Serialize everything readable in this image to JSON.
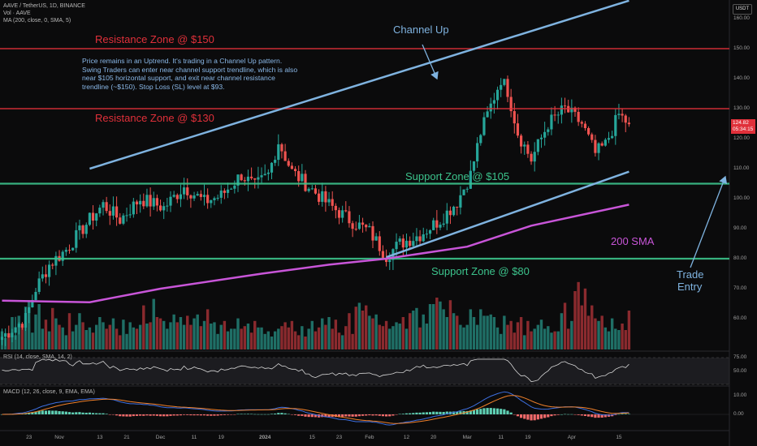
{
  "header": {
    "symbol_line": "AAVE / TetherUS, 1D, BINANCE",
    "vol_line": "Vol · AAVE",
    "ma_line": "MA (200, close, 0, SMA, 5)",
    "rsi_line": "RSI (14, close, SMA, 14, 2)",
    "macd_line": "MACD (12, 26, close, 9, EMA, EMA)",
    "currency": "USDT"
  },
  "annotations": {
    "resistance_150": "Resistance Zone @ $150",
    "resistance_130": "Resistance Zone @ $130",
    "support_105": "Support Zone @ $105",
    "support_80": "Support Zone @ $80",
    "channel_up": "Channel Up",
    "sma_label": "200 SMA",
    "trade_entry_1": "Trade",
    "trade_entry_2": "Entry",
    "note": "Price remains in an Uptrend. It's trading in a Channel Up pattern. Swing Traders can enter near channel support trendline, which is also near $105 horizontal support, and exit near channel resistance trendline (~$150). Stop Loss (SL) level at $93."
  },
  "price_tag": {
    "price": "124.82",
    "countdown": "05:34:15"
  },
  "colors": {
    "up": "#26a69a",
    "down": "#ef5350",
    "resistance": "#e0303a",
    "support": "#3cc38c",
    "channel": "#7fb3e0",
    "sma": "#c855d8",
    "background": "#0b0b0c"
  },
  "chart_data": [
    {
      "type": "candlestick",
      "title": "AAVE / TetherUS, 1D, BINANCE",
      "xlabel": "",
      "ylabel": "",
      "ylim": [
        50,
        165
      ],
      "yticks": [
        "160.00",
        "150.00",
        "140.00",
        "130.00",
        "120.00",
        "110.00",
        "100.00",
        "90.00",
        "80.00",
        "70.00",
        "60.00"
      ],
      "xticks": [
        "23",
        "Nov",
        "13",
        "21",
        "Dec",
        "11",
        "19",
        "2024",
        "15",
        "23",
        "Feb",
        "12",
        "20",
        "Mar",
        "11",
        "19",
        "Apr",
        "15"
      ],
      "horizontal_lines": [
        {
          "name": "Resistance Zone @ $150",
          "value": 150
        },
        {
          "name": "Resistance Zone @ $130",
          "value": 130
        },
        {
          "name": "Support Zone @ $105",
          "value": 105
        },
        {
          "name": "Support Zone @ $80",
          "value": 80
        }
      ],
      "channel_up": {
        "upper": [
          [
            "Nov 10",
            110
          ],
          [
            "Apr 18",
            166
          ]
        ],
        "lower": [
          [
            "Feb 6",
            80.5
          ],
          [
            "Apr 18",
            109
          ]
        ]
      },
      "sma_200": [
        [
          "Oct 15",
          66
        ],
        [
          "Nov 10",
          65.5
        ],
        [
          "Dec 1",
          70
        ],
        [
          "Dec 31",
          75
        ],
        [
          "Jan 20",
          78
        ],
        [
          "Feb 6",
          80
        ],
        [
          "Mar 1",
          84
        ],
        [
          "Mar 20",
          91
        ],
        [
          "Apr 18",
          98
        ]
      ],
      "price_path": [
        [
          "Oct 15",
          54
        ],
        [
          "Oct 22",
          60
        ],
        [
          "Oct 25",
          70
        ],
        [
          "Oct 29",
          78
        ],
        [
          "Nov 3",
          83
        ],
        [
          "Nov 10",
          93
        ],
        [
          "Nov 14",
          98
        ],
        [
          "Nov 19",
          93
        ],
        [
          "Nov 25",
          100
        ],
        [
          "Dec 2",
          97
        ],
        [
          "Dec 8",
          104
        ],
        [
          "Dec 14",
          99
        ],
        [
          "Dec 19",
          101
        ],
        [
          "Dec 25",
          108
        ],
        [
          "Dec 29",
          104
        ],
        [
          "Jan 2",
          108
        ],
        [
          "Jan 5",
          119
        ],
        [
          "Jan 9",
          109
        ],
        [
          "Jan 14",
          104
        ],
        [
          "Jan 20",
          98
        ],
        [
          "Jan 26",
          93
        ],
        [
          "Feb 1",
          89
        ],
        [
          "Feb 6",
          81
        ],
        [
          "Feb 10",
          85
        ],
        [
          "Feb 16",
          88
        ],
        [
          "Feb 22",
          93
        ],
        [
          "Feb 27",
          99
        ],
        [
          "Mar 2",
          108
        ],
        [
          "Mar 5",
          122
        ],
        [
          "Mar 8",
          131
        ],
        [
          "Mar 11",
          140
        ],
        [
          "Mar 13",
          136
        ],
        [
          "Mar 16",
          122
        ],
        [
          "Mar 20",
          113
        ],
        [
          "Mar 25",
          125
        ],
        [
          "Mar 30",
          130
        ],
        [
          "Apr 4",
          125
        ],
        [
          "Apr 8",
          115
        ],
        [
          "Apr 11",
          118
        ],
        [
          "Apr 15",
          128
        ],
        [
          "Apr 18",
          124.82
        ]
      ]
    },
    {
      "type": "bar",
      "title": "Vol · AAVE",
      "xlabel": "",
      "ylabel": "",
      "values": [
        14,
        9,
        11,
        25,
        11,
        26,
        18,
        33,
        38,
        13,
        27,
        35,
        16,
        23,
        14,
        32,
        24,
        19,
        17,
        11,
        28,
        14,
        19,
        28,
        21,
        15,
        17,
        13,
        19,
        25,
        21,
        16,
        19,
        24,
        16,
        11,
        23,
        12,
        21,
        17,
        16,
        19,
        34,
        20,
        21,
        39,
        25,
        24,
        22,
        16,
        21,
        27,
        21,
        25,
        19,
        26,
        19,
        24,
        27,
        18,
        22,
        31,
        20,
        21,
        12,
        19,
        22,
        14,
        16,
        16,
        24,
        16,
        18,
        20,
        13,
        22,
        17,
        17,
        12,
        14,
        10,
        14,
        16,
        18,
        21,
        17,
        22,
        14,
        11,
        18,
        10,
        16,
        22,
        14,
        17,
        24,
        19,
        25,
        16,
        23,
        13,
        11,
        18,
        28,
        12,
        33,
        36,
        30,
        34,
        26,
        24,
        27,
        19,
        18,
        22,
        16,
        18,
        21,
        20,
        25,
        16,
        28,
        30,
        32,
        17,
        27,
        20,
        35,
        35,
        40,
        37,
        31,
        25,
        38,
        28,
        26,
        19,
        17,
        19,
        31,
        25,
        19,
        31,
        26,
        26,
        27,
        25,
        17,
        12,
        26,
        19,
        22,
        13,
        21,
        25,
        11,
        22,
        14,
        16,
        19,
        23,
        16,
        18,
        13,
        14,
        14,
        28,
        36,
        16,
        22,
        45,
        52,
        34,
        47,
        26,
        34,
        24,
        22,
        26,
        17,
        14,
        24,
        16,
        15,
        20,
        15,
        30,
        24,
        19,
        19,
        14,
        13,
        19,
        12,
        20,
        15,
        11,
        13,
        16,
        23,
        15,
        12,
        17,
        23,
        10,
        21,
        18,
        11,
        23,
        13,
        18,
        19,
        14,
        18,
        8
      ]
    },
    {
      "type": "line",
      "title": "RSI (14, close, SMA, 14, 2)",
      "xlabel": "",
      "ylabel": "",
      "ylim": [
        25,
        75
      ],
      "yticks": [
        "75.00",
        "50.00"
      ],
      "bands": [
        75,
        25
      ]
    },
    {
      "type": "bar",
      "title": "MACD (12, 26, close, 9, EMA, EMA)",
      "xlabel": "",
      "ylabel": "",
      "ylim": [
        -6,
        12
      ],
      "yticks": [
        "10.00",
        "0.00"
      ],
      "series": [
        {
          "name": "MACD"
        },
        {
          "name": "Signal"
        },
        {
          "name": "Histogram"
        }
      ]
    }
  ]
}
